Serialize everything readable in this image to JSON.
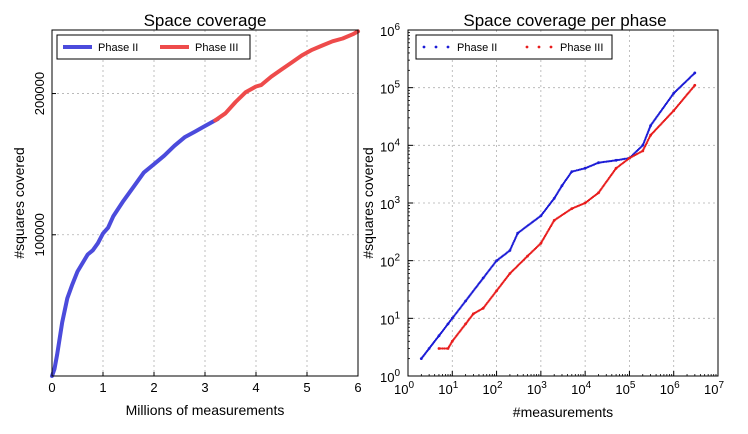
{
  "chart_data": [
    {
      "type": "line",
      "title": "Space coverage",
      "xlabel": "Millions of measurements",
      "ylabel": "#squares covered",
      "xlim": [
        0,
        6
      ],
      "ylim": [
        0,
        245000
      ],
      "x_scale": "linear",
      "y_scale": "linear",
      "grid": true,
      "legend_position": "top-left",
      "x_ticks": [
        "0",
        "1",
        "2",
        "3",
        "4",
        "5",
        "6"
      ],
      "y_ticks": [
        "100000",
        "200000"
      ],
      "series": [
        {
          "name": "Phase II",
          "color": "#4b4bdc",
          "x": [
            0,
            0.05,
            0.1,
            0.2,
            0.3,
            0.4,
            0.5,
            0.6,
            0.7,
            0.8,
            0.9,
            1.0,
            1.1,
            1.2,
            1.4,
            1.6,
            1.8,
            2.0,
            2.2,
            2.4,
            2.6,
            2.8,
            3.0,
            3.2,
            3.25
          ],
          "y": [
            0,
            5000,
            15000,
            38000,
            55000,
            65000,
            74000,
            80000,
            86000,
            89000,
            94000,
            101000,
            105000,
            113000,
            124000,
            134000,
            144000,
            150000,
            156000,
            163000,
            169000,
            173000,
            177000,
            181000,
            182000
          ]
        },
        {
          "name": "Phase III",
          "color": "#ee4b4b",
          "x": [
            3.2,
            3.4,
            3.6,
            3.8,
            4.0,
            4.1,
            4.3,
            4.5,
            4.7,
            4.9,
            5.1,
            5.3,
            5.5,
            5.7,
            5.9,
            6.0
          ],
          "y": [
            181000,
            186000,
            194000,
            201000,
            205000,
            206000,
            212000,
            217000,
            222000,
            227000,
            231000,
            234000,
            237000,
            239000,
            242000,
            244000
          ]
        }
      ]
    },
    {
      "type": "scatter",
      "title": "Space coverage per phase",
      "xlabel": "#measurements",
      "ylabel": "#squares covered",
      "xlim": [
        1,
        10000000
      ],
      "ylim": [
        1,
        1000000
      ],
      "x_scale": "log",
      "y_scale": "log",
      "grid": true,
      "legend_position": "top-left",
      "x_ticks": [
        {
          "base": "10",
          "exp": "0"
        },
        {
          "base": "10",
          "exp": "1"
        },
        {
          "base": "10",
          "exp": "2"
        },
        {
          "base": "10",
          "exp": "3"
        },
        {
          "base": "10",
          "exp": "4"
        },
        {
          "base": "10",
          "exp": "5"
        },
        {
          "base": "10",
          "exp": "6"
        },
        {
          "base": "10",
          "exp": "7"
        }
      ],
      "y_ticks": [
        {
          "base": "10",
          "exp": "0"
        },
        {
          "base": "10",
          "exp": "1"
        },
        {
          "base": "10",
          "exp": "2"
        },
        {
          "base": "10",
          "exp": "3"
        },
        {
          "base": "10",
          "exp": "4"
        },
        {
          "base": "10",
          "exp": "5"
        },
        {
          "base": "10",
          "exp": "6"
        }
      ],
      "series": [
        {
          "name": "Phase II",
          "color": "#1c1cd6",
          "x": [
            2,
            3,
            5,
            8,
            10,
            20,
            50,
            100,
            200,
            300,
            1000,
            2000,
            3000,
            5000,
            10000,
            20000,
            50000,
            100000,
            200000,
            300000,
            1000000,
            3000000
          ],
          "y": [
            2,
            3,
            5,
            8,
            10,
            20,
            50,
            100,
            150,
            300,
            600,
            1200,
            2000,
            3500,
            4000,
            5000,
            5500,
            6000,
            10000,
            22000,
            80000,
            180000
          ]
        },
        {
          "name": "Phase III",
          "color": "#e81c1c",
          "x": [
            5,
            8,
            10,
            20,
            30,
            50,
            100,
            200,
            500,
            1000,
            2000,
            5000,
            10000,
            20000,
            50000,
            100000,
            200000,
            300000,
            1000000,
            3000000
          ],
          "y": [
            3,
            3,
            4,
            8,
            12,
            15,
            30,
            60,
            120,
            200,
            500,
            800,
            1000,
            1500,
            4000,
            6000,
            8000,
            15000,
            40000,
            110000
          ]
        }
      ]
    }
  ]
}
